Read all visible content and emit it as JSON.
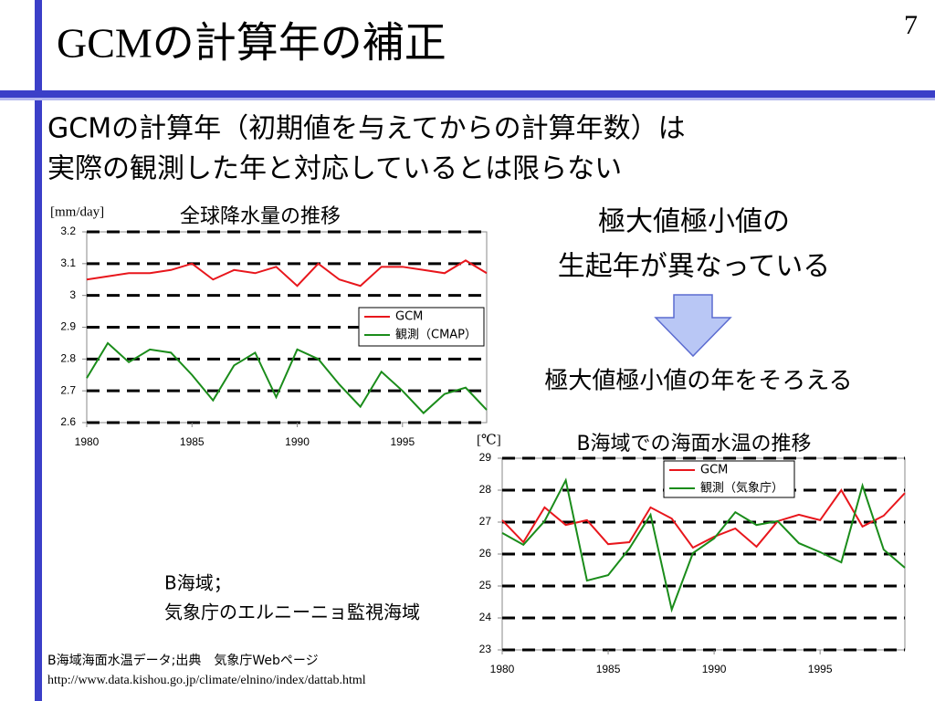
{
  "slide": {
    "title": "GCMの計算年の補正",
    "page_number": "7",
    "lead": [
      "GCMの計算年（初期値を与えてからの計算年数）は",
      "実際の観測した年と対応しているとは限らない"
    ],
    "note1": [
      "極大値極小値の",
      "生起年が異なっている"
    ],
    "note2": "極大値極小値の年をそろえる",
    "area": [
      "B海域；",
      "気象庁のエルニーニョ監視海域"
    ],
    "source": [
      "B海域海面水温データ;出典　気象庁Webページ",
      "http://www.data.kishou.go.jp/climate/elnino/index/dattab.html"
    ]
  },
  "chart_data": [
    {
      "type": "line",
      "title": "全球降水量の推移",
      "y_label": "[mm/day]",
      "x": [
        1980,
        1981,
        1982,
        1983,
        1984,
        1985,
        1986,
        1987,
        1988,
        1989,
        1990,
        1991,
        1992,
        1993,
        1994,
        1995,
        1996,
        1997,
        1998,
        1999
      ],
      "xlim": [
        1980,
        1999
      ],
      "xticks": [
        1980,
        1985,
        1990,
        1995
      ],
      "ylim": [
        2.6,
        3.2
      ],
      "yticks": [
        2.6,
        2.7,
        2.8,
        2.9,
        3,
        3.1,
        3.2
      ],
      "grid": true,
      "legend": "right",
      "series": [
        {
          "name": "GCM",
          "color": "#e8161c",
          "values": [
            3.05,
            3.06,
            3.07,
            3.07,
            3.08,
            3.1,
            3.05,
            3.08,
            3.07,
            3.09,
            3.03,
            3.1,
            3.05,
            3.03,
            3.09,
            3.09,
            3.08,
            3.07,
            3.11,
            3.07
          ]
        },
        {
          "name": "観測（CMAP）",
          "color": "#1a8c1a",
          "values": [
            2.74,
            2.85,
            2.79,
            2.83,
            2.82,
            2.75,
            2.67,
            2.78,
            2.82,
            2.68,
            2.83,
            2.8,
            2.72,
            2.65,
            2.76,
            2.7,
            2.63,
            2.69,
            2.71,
            2.64
          ]
        }
      ]
    },
    {
      "type": "line",
      "title": "B海域での海面水温の推移",
      "y_label": "[℃]",
      "x": [
        1980,
        1981,
        1982,
        1983,
        1984,
        1985,
        1986,
        1987,
        1988,
        1989,
        1990,
        1991,
        1992,
        1993,
        1994,
        1995,
        1996,
        1997,
        1998,
        1999
      ],
      "xlim": [
        1980,
        1999
      ],
      "xticks": [
        1980,
        1985,
        1990,
        1995
      ],
      "ylim": [
        23,
        29
      ],
      "yticks": [
        23,
        24,
        25,
        26,
        27,
        28,
        29
      ],
      "grid": true,
      "legend": "top-right",
      "series": [
        {
          "name": "GCM",
          "color": "#e8161c",
          "values": [
            27.06,
            26.37,
            27.46,
            26.91,
            27.06,
            26.31,
            26.37,
            27.46,
            27.11,
            26.2,
            26.54,
            26.8,
            26.23,
            27.03,
            27.23,
            27.06,
            28.0,
            26.86,
            27.2,
            27.91
          ]
        },
        {
          "name": "観測（気象庁）",
          "color": "#1a8c1a",
          "values": [
            26.66,
            26.29,
            27.03,
            28.31,
            25.17,
            25.34,
            26.17,
            27.23,
            24.26,
            26.03,
            26.49,
            27.31,
            26.91,
            27.03,
            26.34,
            26.06,
            25.74,
            28.14,
            26.14,
            25.57
          ]
        }
      ]
    }
  ]
}
